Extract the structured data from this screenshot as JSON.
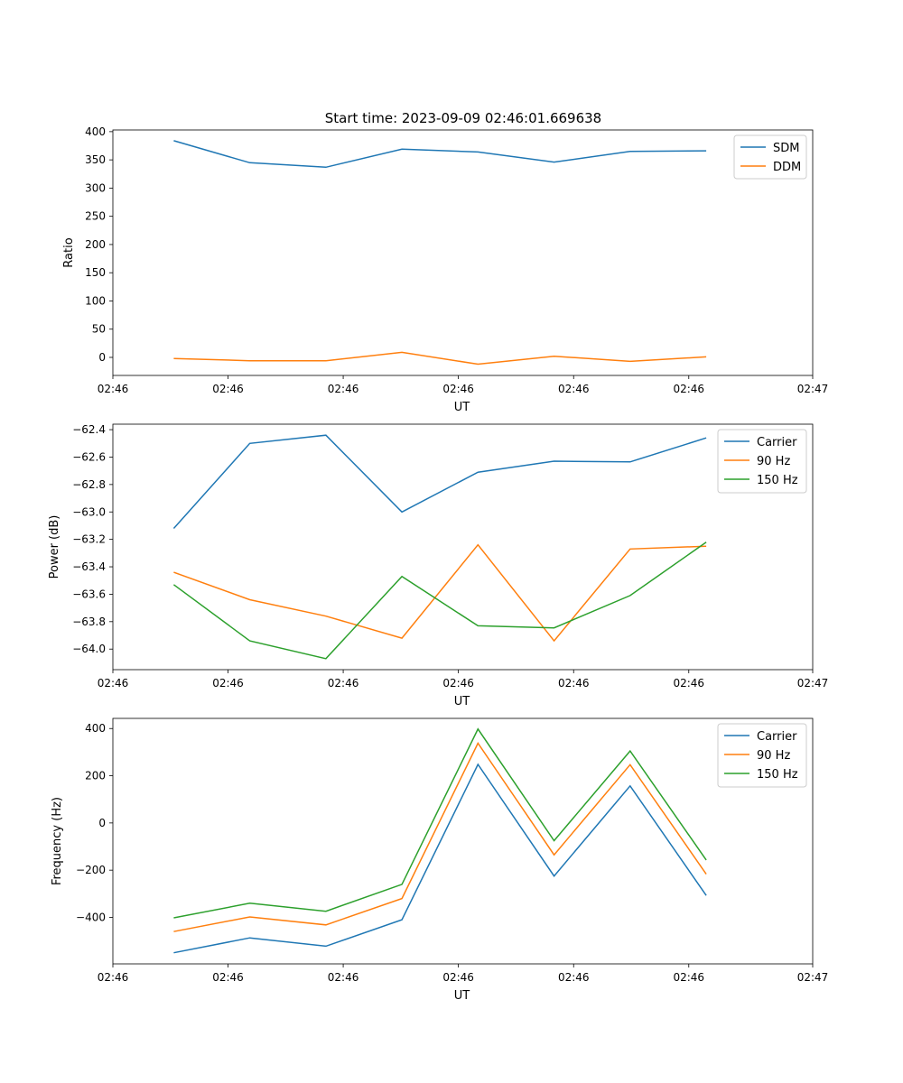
{
  "figure": {
    "title": "Start time: 2023-09-09 02:46:01.669638"
  },
  "chart_data": [
    {
      "type": "line",
      "title": "Start time: 2023-09-09 02:46:01.669638",
      "xlabel": "UT",
      "ylabel": "Ratio",
      "x": [
        1,
        2,
        3,
        4,
        5,
        6,
        7,
        8
      ],
      "xlim": [
        0.2,
        9.4
      ],
      "xticks": [
        0.2,
        1.714,
        3.228,
        4.742,
        6.257,
        7.771,
        9.4
      ],
      "xtick_labels": [
        "02:46",
        "02:46",
        "02:46",
        "02:46",
        "02:46",
        "02:46",
        "02:47"
      ],
      "ylim": [
        -32,
        403
      ],
      "yticks": [
        0,
        50,
        100,
        150,
        200,
        250,
        300,
        350,
        400
      ],
      "ytick_labels": [
        "0",
        "50",
        "100",
        "150",
        "200",
        "250",
        "300",
        "350",
        "400"
      ],
      "legend_position": "top-right",
      "series": [
        {
          "name": "SDM",
          "color": "#1f77b4",
          "values": [
            384,
            345,
            337,
            369,
            364,
            346,
            365,
            366
          ]
        },
        {
          "name": "DDM",
          "color": "#ff7f0e",
          "values": [
            -2,
            -6,
            -6,
            9,
            -12,
            2,
            -7,
            1
          ]
        }
      ]
    },
    {
      "type": "line",
      "xlabel": "UT",
      "ylabel": "Power (dB)",
      "x": [
        1,
        2,
        3,
        4,
        5,
        6,
        7,
        8
      ],
      "xlim": [
        0.2,
        9.4
      ],
      "xticks": [
        0.2,
        1.714,
        3.228,
        4.742,
        6.257,
        7.771,
        9.4
      ],
      "xtick_labels": [
        "02:46",
        "02:46",
        "02:46",
        "02:46",
        "02:46",
        "02:46",
        "02:47"
      ],
      "ylim": [
        -64.15,
        -62.36
      ],
      "yticks": [
        -64.0,
        -63.8,
        -63.6,
        -63.4,
        -63.2,
        -63.0,
        -62.8,
        -62.6,
        -62.4
      ],
      "ytick_labels": [
        "−64.0",
        "−63.8",
        "−63.6",
        "−63.4",
        "−63.2",
        "−63.0",
        "−62.8",
        "−62.6",
        "−62.4"
      ],
      "legend_position": "top-right",
      "series": [
        {
          "name": "Carrier",
          "color": "#1f77b4",
          "values": [
            -63.12,
            -62.5,
            -62.44,
            -63.0,
            -62.71,
            -62.63,
            -62.635,
            -62.46
          ]
        },
        {
          "name": "90 Hz",
          "color": "#ff7f0e",
          "values": [
            -63.44,
            -63.64,
            -63.76,
            -63.92,
            -63.24,
            -63.94,
            -63.27,
            -63.25
          ]
        },
        {
          "name": "150 Hz",
          "color": "#2ca02c",
          "values": [
            -63.53,
            -63.94,
            -64.07,
            -63.47,
            -63.83,
            -63.845,
            -63.61,
            -63.22
          ]
        }
      ]
    },
    {
      "type": "line",
      "xlabel": "UT",
      "ylabel": "Frequency (Hz)",
      "x": [
        1,
        2,
        3,
        4,
        5,
        6,
        7,
        8
      ],
      "xlim": [
        0.2,
        9.4
      ],
      "xticks": [
        0.2,
        1.714,
        3.228,
        4.742,
        6.257,
        7.771,
        9.4
      ],
      "xtick_labels": [
        "02:46",
        "02:46",
        "02:46",
        "02:46",
        "02:46",
        "02:46",
        "02:47"
      ],
      "ylim": [
        -597,
        443
      ],
      "yticks": [
        -400,
        -200,
        0,
        200,
        400
      ],
      "ytick_labels": [
        "−400",
        "−200",
        "0",
        "200",
        "400"
      ],
      "legend_position": "top-right",
      "series": [
        {
          "name": "Carrier",
          "color": "#1f77b4",
          "values": [
            -550,
            -487,
            -522,
            -410,
            248,
            -225,
            157,
            -307
          ]
        },
        {
          "name": "90 Hz",
          "color": "#ff7f0e",
          "values": [
            -460,
            -398,
            -432,
            -320,
            338,
            -135,
            247,
            -217
          ]
        },
        {
          "name": "150 Hz",
          "color": "#2ca02c",
          "values": [
            -402,
            -340,
            -374,
            -260,
            398,
            -75,
            305,
            -157
          ]
        }
      ]
    }
  ]
}
